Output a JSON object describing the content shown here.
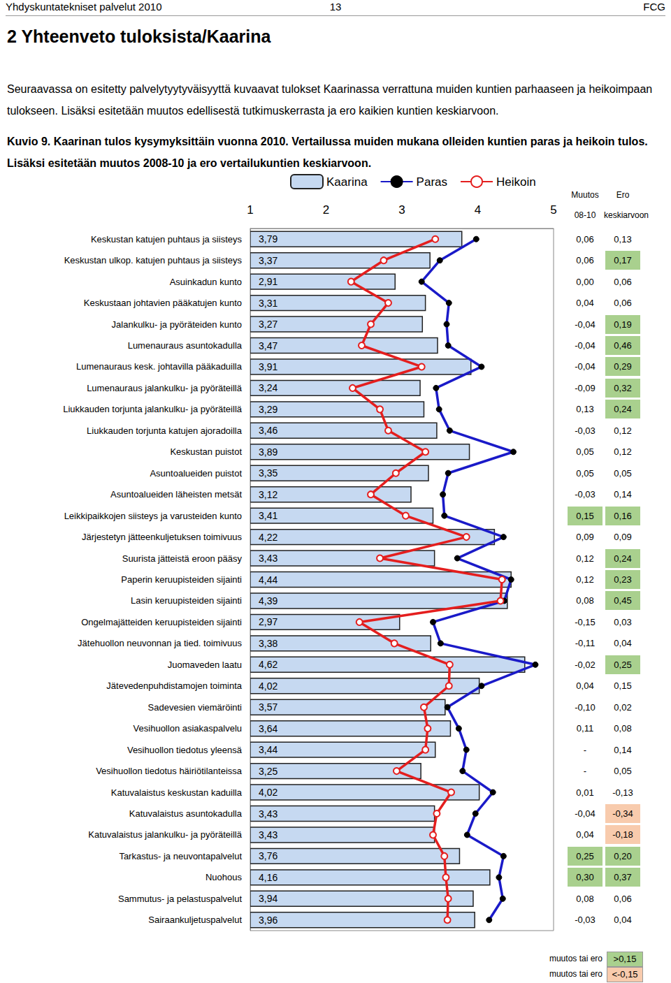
{
  "page": {
    "header_left": "Yhdyskuntatekniset palvelut 2010",
    "page_number": "13",
    "header_right": "FCG",
    "heading": "2 Yhteenveto tuloksista/Kaarina",
    "intro": "Seuraavassa on esitetty palvelytyytyväisyyttä kuvaavat tulokset Kaarinassa verrattuna muiden kuntien parhaaseen ja heikoimpaan tulokseen. Lisäksi esitetään muutos edellisestä tutkimuskerrasta ja ero kaikien kuntien keskiarvoon.",
    "caption": "Kuvio 9. Kaarinan tulos kysymyksittäin vuonna 2010. Vertailussa muiden mukana olleiden kuntien paras ja heikoin tulos. Lisäksi esitetään muutos 2008-10 ja ero vertailukuntien keskiarvoon."
  },
  "chart_data": {
    "type": "bar",
    "orientation": "horizontal",
    "legend": "top",
    "grid": false,
    "data_labels": true,
    "xlim": [
      1,
      5
    ],
    "xticks": [
      1,
      2,
      3,
      4,
      5
    ],
    "categories": [
      "Keskustan katujen puhtaus ja siisteys",
      "Keskustan ulkop. katujen puhtaus ja siisteys",
      "Asuinkadun kunto",
      "Keskustaan johtavien pääkatujen kunto",
      "Jalankulku- ja pyöräteiden kunto",
      "Lumenauraus asuntokadulla",
      "Lumenauraus kesk. johtavilla pääkaduilla",
      "Lumenauraus jalankulku- ja pyöräteillä",
      "Liukkauden torjunta jalankulku- ja pyöräteillä",
      "Liukkauden torjunta katujen ajoradoilla",
      "Keskustan puistot",
      "Asuntoalueiden puistot",
      "Asuntoalueiden läheisten metsät",
      "Leikkipaikkojen siisteys ja varusteiden kunto",
      "Järjestetyn jätteenkuljetuksen toimivuus",
      "Suurista jätteistä eroon pääsy",
      "Paperin keruupisteiden sijainti",
      "Lasin keruupisteiden sijainti",
      "Ongelmajätteiden keruupisteiden sijainti",
      "Jätehuollon neuvonnan ja tied. toimivuus",
      "Juomaveden laatu",
      "Jätevedenpuhdistamojen toiminta",
      "Sadevesien viemäröinti",
      "Vesihuollon asiakaspalvelu",
      "Vesihuollon tiedotus yleensä",
      "Vesihuollon tiedotus häiriötilanteissa",
      "Katuvalaistus keskustan kaduilla",
      "Katuvalaistus asuntokadulla",
      "Katuvalaistus jalankulku- ja pyöräteillä",
      "Tarkastus- ja neuvontapalvelut",
      "Nuohous",
      "Sammutus- ja pelastuspalvelut",
      "Sairaankuljetuspalvelut"
    ],
    "series": [
      {
        "name": "Kaarina",
        "type": "bar",
        "color": "#c6d9f1",
        "values": [
          3.79,
          3.37,
          2.91,
          3.31,
          3.27,
          3.47,
          3.91,
          3.24,
          3.29,
          3.46,
          3.89,
          3.35,
          3.12,
          3.41,
          4.22,
          3.43,
          4.44,
          4.39,
          2.97,
          3.38,
          4.62,
          4.02,
          3.57,
          3.64,
          3.44,
          3.25,
          4.02,
          3.43,
          3.43,
          3.76,
          4.16,
          3.94,
          3.96
        ],
        "value_labels": [
          "3,79",
          "3,37",
          "2,91",
          "3,31",
          "3,27",
          "3,47",
          "3,91",
          "3,24",
          "3,29",
          "3,46",
          "3,89",
          "3,35",
          "3,12",
          "3,41",
          "4,22",
          "3,43",
          "4,44",
          "4,39",
          "2,97",
          "3,38",
          "4,62",
          "4,02",
          "3,57",
          "3,64",
          "3,44",
          "3,25",
          "4,02",
          "3,43",
          "3,43",
          "3,76",
          "4,16",
          "3,94",
          "3,96"
        ]
      },
      {
        "name": "Paras",
        "type": "line",
        "color": "#1a1ac8",
        "marker": "circle",
        "values": [
          3.98,
          3.5,
          3.26,
          3.62,
          3.59,
          3.61,
          4.05,
          3.45,
          3.49,
          3.63,
          4.47,
          3.61,
          3.54,
          3.56,
          4.34,
          3.73,
          4.44,
          4.35,
          3.41,
          3.51,
          4.76,
          4.05,
          3.6,
          3.75,
          3.85,
          3.8,
          4.2,
          3.97,
          3.86,
          4.34,
          4.28,
          4.33,
          4.15
        ]
      },
      {
        "name": "Heikoin",
        "type": "line",
        "color": "#e41e1e",
        "marker": "hollow",
        "values": [
          3.44,
          2.76,
          2.33,
          2.82,
          2.59,
          2.47,
          3.26,
          2.35,
          2.71,
          2.82,
          3.31,
          2.92,
          2.59,
          3.05,
          3.85,
          2.71,
          4.32,
          4.3,
          2.44,
          2.9,
          3.63,
          3.62,
          3.29,
          3.34,
          3.31,
          2.93,
          3.65,
          3.46,
          3.41,
          3.56,
          3.58,
          3.61,
          3.6
        ]
      }
    ]
  },
  "table": {
    "header": [
      "Muutos",
      "Ero"
    ],
    "subheader": [
      "08-10",
      "keskiarvoon"
    ],
    "rows": [
      [
        "0,06",
        "0,13"
      ],
      [
        "0,06",
        {
          "text": "0,17",
          "fill": "high"
        }
      ],
      [
        "0,00",
        "0,06"
      ],
      [
        "0,04",
        "0,06"
      ],
      [
        "-0,04",
        {
          "text": "0,19",
          "fill": "high"
        }
      ],
      [
        "-0,04",
        {
          "text": "0,46",
          "fill": "high"
        }
      ],
      [
        "-0,04",
        {
          "text": "0,29",
          "fill": "high"
        }
      ],
      [
        "-0,09",
        {
          "text": "0,32",
          "fill": "high"
        }
      ],
      [
        "0,13",
        {
          "text": "0,24",
          "fill": "high"
        }
      ],
      [
        "-0,03",
        "0,12"
      ],
      [
        "0,05",
        "0,12"
      ],
      [
        "0,05",
        "0,05"
      ],
      [
        "-0,03",
        "0,14"
      ],
      [
        {
          "text": "0,15",
          "fill": "high"
        },
        {
          "text": "0,16",
          "fill": "high"
        }
      ],
      [
        "0,09",
        "0,09"
      ],
      [
        "0,12",
        {
          "text": "0,24",
          "fill": "high"
        }
      ],
      [
        "0,12",
        {
          "text": "0,23",
          "fill": "high"
        }
      ],
      [
        "0,08",
        {
          "text": "0,45",
          "fill": "high"
        }
      ],
      [
        "-0,15",
        "0,03"
      ],
      [
        "-0,11",
        "0,04"
      ],
      [
        "-0,02",
        {
          "text": "0,25",
          "fill": "high"
        }
      ],
      [
        "0,04",
        "0,15"
      ],
      [
        "-0,10",
        "0,02"
      ],
      [
        "0,11",
        "0,08"
      ],
      [
        "-",
        "0,14"
      ],
      [
        "-",
        "0,05"
      ],
      [
        "0,01",
        "-0,13"
      ],
      [
        "-0,04",
        {
          "text": "-0,34",
          "fill": "low"
        }
      ],
      [
        "0,04",
        {
          "text": "-0,18",
          "fill": "low"
        }
      ],
      [
        {
          "text": "0,25",
          "fill": "high"
        },
        {
          "text": "0,20",
          "fill": "high"
        }
      ],
      [
        {
          "text": "0,30",
          "fill": "high"
        },
        {
          "text": "0,37",
          "fill": "high"
        }
      ],
      [
        "0,08",
        "0,06"
      ],
      [
        "-0,03",
        "0,04"
      ]
    ],
    "legend": [
      {
        "text": "muutos tai ero",
        "key": ">0,15",
        "fill": "high"
      },
      {
        "text": "muutos tai ero",
        "key": "<-0,15",
        "fill": "low"
      }
    ]
  }
}
